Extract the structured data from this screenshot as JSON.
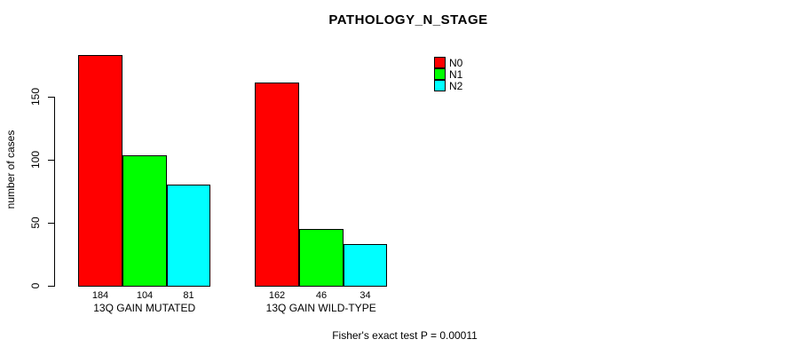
{
  "chart_data": {
    "type": "bar",
    "title": "PATHOLOGY_N_STAGE",
    "xlabel": "",
    "ylabel": "number of cases",
    "categories": [
      "13Q GAIN MUTATED",
      "13Q GAIN WILD-TYPE"
    ],
    "series": [
      {
        "name": "N0",
        "color": "#ff0000",
        "values": [
          184,
          162
        ]
      },
      {
        "name": "N1",
        "color": "#00ff00",
        "values": [
          104,
          46
        ]
      },
      {
        "name": "N2",
        "color": "#00ffff",
        "values": [
          81,
          34
        ]
      }
    ],
    "yticks": [
      0,
      50,
      100,
      150
    ],
    "ylim": [
      0,
      184
    ],
    "grid": false,
    "legend_position": "top-right",
    "show_value_labels": true,
    "bar_border_color": "#000000"
  },
  "annotation": {
    "text": "Fisher's exact test P = 0.00011"
  },
  "colors": {
    "background": "#ffffff",
    "text": "#000000",
    "axis": "#000000"
  }
}
